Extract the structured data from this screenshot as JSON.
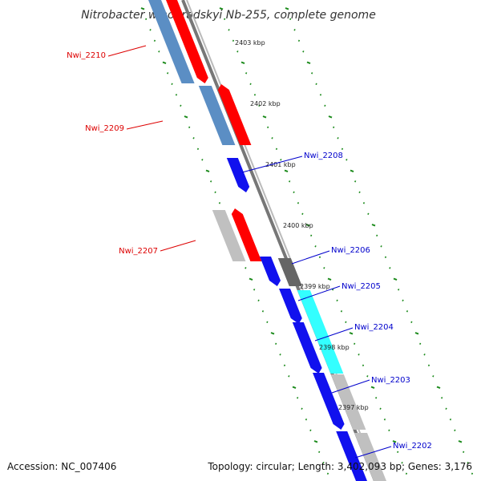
{
  "title": "Nitrobacter winogradskyi Nb-255, complete genome",
  "footer": {
    "accession": "Accession: NC_007406",
    "summary": "Topology: circular; Length: 3,402,093 bp; Genes: 3,176"
  },
  "scale": {
    "ticks": [
      "2403 kbp",
      "2402 kbp",
      "2401 kbp",
      "2400 kbp",
      "2399 kbp",
      "2398 kbp",
      "2397 kbp"
    ]
  },
  "colors": {
    "reverse_label": "#dd0000",
    "forward_label": "#0000cc",
    "dotted_ring": "#1a8a1a",
    "backbone": "#888888"
  },
  "genes": [
    {
      "name": "Nwi_2210",
      "strand": "reverse",
      "color": "#ff0000",
      "cog_color": "#5b8ec4"
    },
    {
      "name": "Nwi_2209",
      "strand": "reverse",
      "color": "#ff0000",
      "cog_color": "#5b8ec4"
    },
    {
      "name": "Nwi_2208",
      "strand": "forward",
      "color": "#1111ee",
      "cog_color": null
    },
    {
      "name": "Nwi_2207",
      "strand": "reverse",
      "color": "#ff0000",
      "cog_color": "#c0c0c0"
    },
    {
      "name": "Nwi_2206",
      "strand": "forward",
      "color": "#1111ee",
      "cog_color": "#666666"
    },
    {
      "name": "Nwi_2205",
      "strand": "forward",
      "color": "#1111ee",
      "cog_color": "#33ffff"
    },
    {
      "name": "Nwi_2204",
      "strand": "forward",
      "color": "#1111ee",
      "cog_color": "#33ffff"
    },
    {
      "name": "Nwi_2203",
      "strand": "forward",
      "color": "#1111ee",
      "cog_color": "#c0c0c0"
    },
    {
      "name": "Nwi_2202",
      "strand": "forward",
      "color": "#1111ee",
      "cog_color": "#c0c0c0"
    }
  ]
}
